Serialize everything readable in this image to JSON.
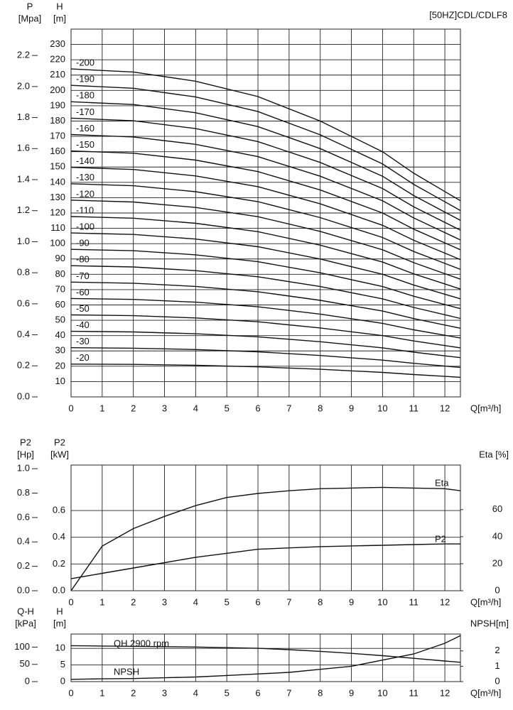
{
  "title": "[50HZ]CDL/CDLF8",
  "chart_data": [
    {
      "type": "line",
      "x": [
        0,
        2,
        4,
        6,
        8,
        10,
        11,
        12,
        12.5
      ],
      "xlim": [
        0,
        12.5
      ],
      "xticks": [
        0,
        1,
        2,
        3,
        4,
        5,
        6,
        7,
        8,
        9,
        10,
        11,
        12
      ],
      "xlabel": "Q[m³/h]",
      "ylabel": [
        "H",
        "[m]"
      ],
      "ylim": [
        0,
        240
      ],
      "yticks": [
        10,
        20,
        30,
        40,
        50,
        60,
        70,
        80,
        90,
        100,
        110,
        120,
        130,
        140,
        150,
        160,
        170,
        180,
        190,
        200,
        210,
        220,
        230
      ],
      "y3label": [
        "P",
        "[Mpa]"
      ],
      "y3lim": [
        0,
        2.37
      ],
      "y3ticks": [
        {
          "value": 0,
          "label": "0.0"
        },
        0.2,
        0.4,
        0.6,
        0.8,
        {
          "value": 1,
          "label": "1.0"
        },
        1.2,
        1.4,
        1.6,
        1.8,
        {
          "value": 2,
          "label": "2.0"
        },
        2.2
      ],
      "grid": true,
      "color": "#111",
      "series": [
        {
          "name": "-20",
          "values": [
            21.4,
            21.2,
            20.6,
            19.6,
            18,
            16,
            14.6,
            13.4,
            12.8
          ]
        },
        {
          "name": "-30",
          "values": [
            32.1,
            31.8,
            30.9,
            29.4,
            27,
            24,
            21.9,
            20.1,
            19.2
          ]
        },
        {
          "name": "-40",
          "values": [
            42.8,
            42.4,
            41.2,
            39.2,
            36,
            32,
            29.2,
            26.8,
            25.6
          ]
        },
        {
          "name": "-50",
          "values": [
            53.5,
            53,
            51.5,
            49,
            45,
            40,
            36.5,
            33.5,
            32
          ]
        },
        {
          "name": "-60",
          "values": [
            64.2,
            63.6,
            61.8,
            58.8,
            54,
            48,
            43.8,
            40.2,
            38.4
          ]
        },
        {
          "name": "-70",
          "values": [
            74.9,
            74.2,
            72.1,
            68.6,
            63,
            56,
            51.1,
            46.9,
            44.8
          ]
        },
        {
          "name": "-80",
          "values": [
            85.6,
            84.8,
            82.4,
            78.4,
            72,
            64,
            58.4,
            53.6,
            51.2
          ]
        },
        {
          "name": "-90",
          "values": [
            96.3,
            95.4,
            92.7,
            88.2,
            81,
            72,
            65.7,
            60.3,
            57.6
          ]
        },
        {
          "name": "-100",
          "values": [
            107,
            106,
            103,
            98,
            90,
            80,
            73,
            67,
            64
          ]
        },
        {
          "name": "-110",
          "values": [
            117.7,
            116.6,
            113.3,
            107.8,
            99,
            88,
            80.3,
            73.7,
            70.4
          ]
        },
        {
          "name": "-120",
          "values": [
            128.4,
            127.2,
            123.6,
            117.6,
            108,
            96,
            87.6,
            80.4,
            76.8
          ]
        },
        {
          "name": "-130",
          "values": [
            139.1,
            137.8,
            133.9,
            127.4,
            117,
            104,
            94.9,
            87.1,
            83.2
          ]
        },
        {
          "name": "-140",
          "values": [
            149.8,
            148.4,
            144.2,
            137.2,
            126,
            112,
            102.2,
            93.8,
            89.6
          ]
        },
        {
          "name": "-150",
          "values": [
            160.5,
            159,
            154.5,
            147,
            135,
            120,
            109.5,
            100.5,
            96
          ]
        },
        {
          "name": "-160",
          "values": [
            171.2,
            169.6,
            164.8,
            156.8,
            144,
            128,
            116.8,
            107.2,
            102.4
          ]
        },
        {
          "name": "-170",
          "values": [
            181.9,
            180.2,
            175.1,
            166.6,
            153,
            136,
            124.1,
            113.9,
            108.8
          ]
        },
        {
          "name": "-180",
          "values": [
            192.6,
            190.8,
            185.4,
            176.4,
            162,
            144,
            131.4,
            120.6,
            115.2
          ]
        },
        {
          "name": "-190",
          "values": [
            203.3,
            201.4,
            195.7,
            186.2,
            171,
            152,
            138.7,
            127.3,
            121.6
          ]
        },
        {
          "name": "-200",
          "values": [
            214,
            212,
            206,
            196,
            180,
            160,
            146,
            134,
            128
          ]
        }
      ]
    },
    {
      "type": "line",
      "x": [
        0,
        1,
        2,
        3,
        4,
        5,
        6,
        7,
        8,
        9,
        10,
        11,
        12,
        12.5
      ],
      "xlim": [
        0,
        12.5
      ],
      "xticks": [
        0,
        1,
        2,
        3,
        4,
        5,
        6,
        7,
        8,
        9,
        10,
        11,
        12
      ],
      "xlabel": "Q[m³/h]",
      "ylabel": [
        "P2",
        "[kW]"
      ],
      "ylim": [
        0,
        0.94
      ],
      "yticks": [
        {
          "value": 0,
          "label": "0.0"
        },
        0.2,
        0.4,
        0.6
      ],
      "y3label": [
        "P2",
        "[Hp]"
      ],
      "y3lim": [
        0,
        1.03
      ],
      "y3ticks": [
        {
          "value": 0,
          "label": "0.0"
        },
        0.2,
        0.4,
        0.6,
        0.8,
        {
          "value": 1,
          "label": "1.0"
        }
      ],
      "y2label": "Eta [%]",
      "y2lim": [
        0,
        93
      ],
      "y2ticks": [
        0,
        20,
        40,
        60
      ],
      "grid": true,
      "color": "#111",
      "series": [
        {
          "name": "Eta",
          "axis": "y2",
          "values": [
            0,
            33,
            46,
            55,
            63,
            69,
            72,
            74,
            75.5,
            76,
            76.5,
            76,
            75.5,
            74
          ]
        },
        {
          "name": "P2",
          "values": [
            0.09,
            0.13,
            0.17,
            0.21,
            0.25,
            0.28,
            0.31,
            0.32,
            0.33,
            0.335,
            0.34,
            0.345,
            0.35,
            0.35
          ]
        }
      ]
    },
    {
      "type": "line",
      "x": [
        0,
        1,
        2,
        3,
        4,
        5,
        6,
        7,
        8,
        9,
        10,
        11,
        12,
        12.5
      ],
      "xlim": [
        0,
        12.5
      ],
      "xticks": [
        0,
        1,
        2,
        3,
        4,
        5,
        6,
        7,
        8,
        9,
        10,
        11,
        12
      ],
      "xlabel": "Q[m³/h]",
      "ylabel": [
        "H",
        "[m]"
      ],
      "ylim": [
        0,
        14.3
      ],
      "yticks": [
        0,
        5,
        10
      ],
      "y3label": [
        "Q-H",
        "[kPa]"
      ],
      "y3lim": [
        0,
        138
      ],
      "y3ticks": [
        0,
        50,
        100
      ],
      "y2label": "NPSH[m]",
      "y2lim": [
        0,
        3.1
      ],
      "y2ticks": [
        0,
        1,
        2
      ],
      "grid": true,
      "color": "#111",
      "series": [
        {
          "name": "QH  2900 rpm",
          "values": [
            10.8,
            10.7,
            10.6,
            10.5,
            10.4,
            10.2,
            10.0,
            9.6,
            9.1,
            8.5,
            7.8,
            7.0,
            6.2,
            5.8
          ]
        },
        {
          "name": "NPSH",
          "axis": "y2",
          "values": [
            0.15,
            0.18,
            0.2,
            0.25,
            0.3,
            0.4,
            0.5,
            0.6,
            0.8,
            1.0,
            1.4,
            1.8,
            2.5,
            3.0
          ]
        }
      ]
    }
  ]
}
